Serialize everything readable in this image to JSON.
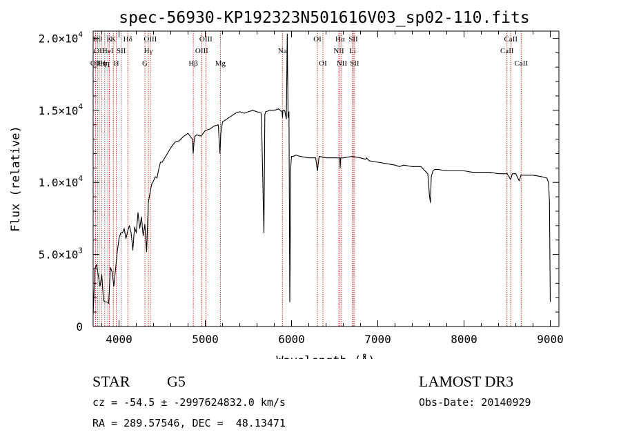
{
  "chart_data": {
    "type": "line",
    "title": "spec-56930-KP192323N501616V03_sp02-110.fits",
    "xlabel": "Wavelength (Å)",
    "ylabel": "Flux (relative)",
    "xlim": [
      3700,
      9100
    ],
    "ylim": [
      0,
      20500
    ],
    "x_ticks": [
      4000,
      5000,
      6000,
      7000,
      8000,
      9000
    ],
    "x_tick_labels": [
      "4000",
      "5000",
      "6000",
      "7000",
      "8000",
      "9000"
    ],
    "y_ticks": [
      {
        "value": 0,
        "mantissa": "0",
        "exponent": ""
      },
      {
        "value": 5000,
        "mantissa": "5.0×10",
        "exponent": "3"
      },
      {
        "value": 10000,
        "mantissa": "1.0×10",
        "exponent": "4"
      },
      {
        "value": 15000,
        "mantissa": "1.5×10",
        "exponent": "4"
      },
      {
        "value": 20000,
        "mantissa": "2.0×10",
        "exponent": "4"
      }
    ],
    "grid": false,
    "series": [
      {
        "color": "#000000",
        "x": [
          3700,
          3720,
          3740,
          3760,
          3780,
          3800,
          3820,
          3840,
          3860,
          3880,
          3900,
          3920,
          3940,
          3960,
          3980,
          4000,
          4020,
          4040,
          4060,
          4080,
          4100,
          4120,
          4140,
          4160,
          4180,
          4200,
          4220,
          4240,
          4260,
          4280,
          4300,
          4320,
          4340,
          4360,
          4380,
          4400,
          4420,
          4440,
          4460,
          4480,
          4500,
          4550,
          4600,
          4650,
          4700,
          4750,
          4800,
          4850,
          4860,
          4870,
          4880,
          4900,
          4950,
          5000,
          5050,
          5100,
          5150,
          5170,
          5180,
          5200,
          5250,
          5300,
          5350,
          5400,
          5450,
          5500,
          5550,
          5600,
          5650,
          5680,
          5690,
          5700,
          5750,
          5800,
          5850,
          5890,
          5896,
          5900,
          5920,
          5940,
          5950,
          5960,
          5970,
          5980,
          5990,
          6000,
          6020,
          6050,
          6100,
          6200,
          6280,
          6300,
          6320,
          6400,
          6500,
          6560,
          6563,
          6570,
          6600,
          6700,
          6800,
          6860,
          6870,
          6900,
          7000,
          7100,
          7200,
          7250,
          7300,
          7400,
          7500,
          7580,
          7600,
          7610,
          7620,
          7640,
          7660,
          7700,
          7800,
          7900,
          8000,
          8100,
          8200,
          8300,
          8400,
          8500,
          8540,
          8560,
          8600,
          8640,
          8660,
          8700,
          8800,
          8900,
          8960,
          8980,
          8990,
          9000
        ],
        "y": [
          800,
          4000,
          4300,
          3500,
          2800,
          3600,
          1800,
          1700,
          1700,
          1600,
          4100,
          3800,
          2800,
          4000,
          5200,
          6100,
          6500,
          6500,
          6800,
          6100,
          6600,
          7000,
          6500,
          5300,
          6900,
          6500,
          7900,
          6800,
          7600,
          6300,
          7100,
          5200,
          8600,
          9300,
          9900,
          10100,
          10400,
          10300,
          10900,
          11400,
          11400,
          11900,
          12400,
          12800,
          12900,
          13200,
          13400,
          13000,
          12000,
          12900,
          13200,
          13300,
          13200,
          13600,
          13700,
          13900,
          14000,
          12000,
          13400,
          14200,
          14400,
          14600,
          14800,
          14900,
          14800,
          14900,
          15000,
          14900,
          14800,
          6500,
          14700,
          14900,
          15000,
          15000,
          15100,
          14900,
          14500,
          15000,
          15000,
          14400,
          20300,
          14500,
          14900,
          1700,
          11000,
          11800,
          11800,
          11900,
          11800,
          11700,
          11700,
          10800,
          11800,
          11700,
          11700,
          11700,
          11000,
          11700,
          11700,
          11800,
          11700,
          11600,
          11700,
          11500,
          11400,
          11300,
          11200,
          11100,
          11200,
          11100,
          11100,
          10600,
          9000,
          8600,
          10400,
          10800,
          10900,
          10900,
          10800,
          10800,
          10800,
          10700,
          10700,
          10700,
          10600,
          10600,
          10200,
          10600,
          10600,
          10100,
          10500,
          10500,
          10500,
          10400,
          10300,
          10000,
          8700,
          1700
        ]
      }
    ],
    "line_markers": [
      {
        "x": 3728,
        "label": "OII",
        "row": 2
      },
      {
        "x": 3750,
        "label": "Hθ",
        "row": 0
      },
      {
        "x": 3771,
        "label": "OII",
        "row": 1
      },
      {
        "x": 3798,
        "label": "Hη",
        "row": 2
      },
      {
        "x": 3835,
        "label": "Hη",
        "row": 2
      },
      {
        "x": 3869,
        "label": "HeI",
        "row": 1
      },
      {
        "x": 3889,
        "label": "K",
        "row": 0
      },
      {
        "x": 3934,
        "label": "K",
        "row": 0
      },
      {
        "x": 3969,
        "label": "H",
        "row": 2
      },
      {
        "x": 4026,
        "label": "SII",
        "row": 1
      },
      {
        "x": 4102,
        "label": "Hδ",
        "row": 0
      },
      {
        "x": 4300,
        "label": "G",
        "row": 2
      },
      {
        "x": 4340,
        "label": "Hγ",
        "row": 1
      },
      {
        "x": 4363,
        "label": "OIII",
        "row": 0
      },
      {
        "x": 4861,
        "label": "Hβ",
        "row": 2
      },
      {
        "x": 4959,
        "label": "OIII",
        "row": 1
      },
      {
        "x": 5007,
        "label": "OIII",
        "row": 0
      },
      {
        "x": 5175,
        "label": "Mg",
        "row": 2
      },
      {
        "x": 5894,
        "label": "Na",
        "row": 1
      },
      {
        "x": 6300,
        "label": "OI",
        "row": 0
      },
      {
        "x": 6364,
        "label": "OI",
        "row": 2
      },
      {
        "x": 6548,
        "label": "NII",
        "row": 1
      },
      {
        "x": 6563,
        "label": "Hα",
        "row": 0
      },
      {
        "x": 6583,
        "label": "NII",
        "row": 2
      },
      {
        "x": 6707,
        "label": "Li",
        "row": 1
      },
      {
        "x": 6716,
        "label": "SII",
        "row": 0
      },
      {
        "x": 6731,
        "label": "SII",
        "row": 2
      },
      {
        "x": 8498,
        "label": "CaII",
        "row": 1
      },
      {
        "x": 8542,
        "label": "CaII",
        "row": 0
      },
      {
        "x": 8662,
        "label": "CaII",
        "row": 2
      }
    ]
  },
  "info": {
    "object_class": "STAR",
    "subclass": "G5",
    "survey": "LAMOST DR3",
    "cz_line": "cz = -54.5 ± -2997624832.0 km/s",
    "obs_date_line": "Obs-Date: 20140929",
    "radec_line": "RA = 289.57546, DEC =  48.13471"
  }
}
